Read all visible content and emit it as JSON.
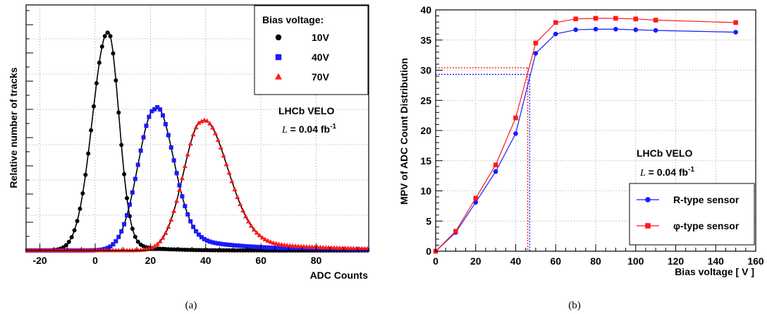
{
  "chart_data": [
    {
      "type": "scatter",
      "xlabel": "ADC Counts",
      "ylabel": "Relative number of tracks",
      "xlim": [
        -25,
        99
      ],
      "ylim": [
        0,
        1.0
      ],
      "x_ticks": [
        "-20",
        "0",
        "20",
        "40",
        "60",
        "80"
      ],
      "grid": true,
      "legend": {
        "title": "Bias voltage:",
        "position": "top-right",
        "entries": [
          "10V",
          "40V",
          "70V"
        ]
      },
      "annotation": {
        "line1": "LHCb VELO",
        "line2_italic": "L",
        "line2_rest": " = 0.04 fb",
        "line2_sup": "-1"
      },
      "caption": "(a)",
      "series": [
        {
          "label": "10V",
          "marker": "circle",
          "color": "#000000",
          "mpv": 4.5,
          "peak": 1.0,
          "sigma_left": 5.5,
          "sigma_right": 4.0,
          "tail_tau": 10,
          "tail_frac": 0.05
        },
        {
          "label": "40V",
          "marker": "square",
          "color": "#1a1aff",
          "mpv": 21.5,
          "peak": 0.7,
          "sigma_left": 6.0,
          "sigma_right": 6.5,
          "tail_tau": 22,
          "tail_frac": 0.12
        },
        {
          "label": "70V",
          "marker": "triangle",
          "color": "#ff1a1a",
          "mpv": 38.5,
          "peak": 0.625,
          "sigma_left": 6.5,
          "sigma_right": 9.0,
          "tail_tau": 28,
          "tail_frac": 0.1
        }
      ]
    },
    {
      "type": "line",
      "xlabel": "Bias voltage  [ V ]",
      "ylabel": "MPV of ADC Count Distribution",
      "xlim": [
        0,
        160
      ],
      "ylim": [
        0,
        40
      ],
      "x_ticks": [
        "0",
        "20",
        "40",
        "60",
        "80",
        "100",
        "120",
        "140",
        "160"
      ],
      "y_ticks": [
        "0",
        "5",
        "10",
        "15",
        "20",
        "25",
        "30",
        "35",
        "40"
      ],
      "grid": true,
      "legend": {
        "position": "bottom-right",
        "entries": [
          "R-type sensor",
          "φ-type sensor"
        ]
      },
      "annotation": {
        "line1": "LHCb VELO",
        "line2_italic": "L",
        "line2_rest": " = 0.04 fb",
        "line2_sup": "-1"
      },
      "caption": "(b)",
      "series": [
        {
          "name": "R-type sensor",
          "color": "#1a1aff",
          "marker": "circle",
          "x": [
            0,
            10,
            20,
            30,
            40,
            50,
            60,
            70,
            80,
            90,
            100,
            110,
            150
          ],
          "y": [
            0,
            3.1,
            8.1,
            13.2,
            19.5,
            32.8,
            36.0,
            36.7,
            36.8,
            36.8,
            36.7,
            36.6,
            36.3
          ]
        },
        {
          "name": "φ-type sensor",
          "color": "#ff1a1a",
          "marker": "square",
          "x": [
            0,
            10,
            20,
            30,
            40,
            50,
            60,
            70,
            80,
            90,
            100,
            110,
            150
          ],
          "y": [
            0,
            3.3,
            8.8,
            14.3,
            22.1,
            34.5,
            37.9,
            38.5,
            38.6,
            38.6,
            38.5,
            38.3,
            37.9
          ]
        }
      ],
      "reference_lines": [
        {
          "color": "#1a1aff",
          "x": 47.0,
          "y": 29.3
        },
        {
          "color": "#ff1a1a",
          "x": 46.0,
          "y": 30.4
        }
      ]
    }
  ]
}
